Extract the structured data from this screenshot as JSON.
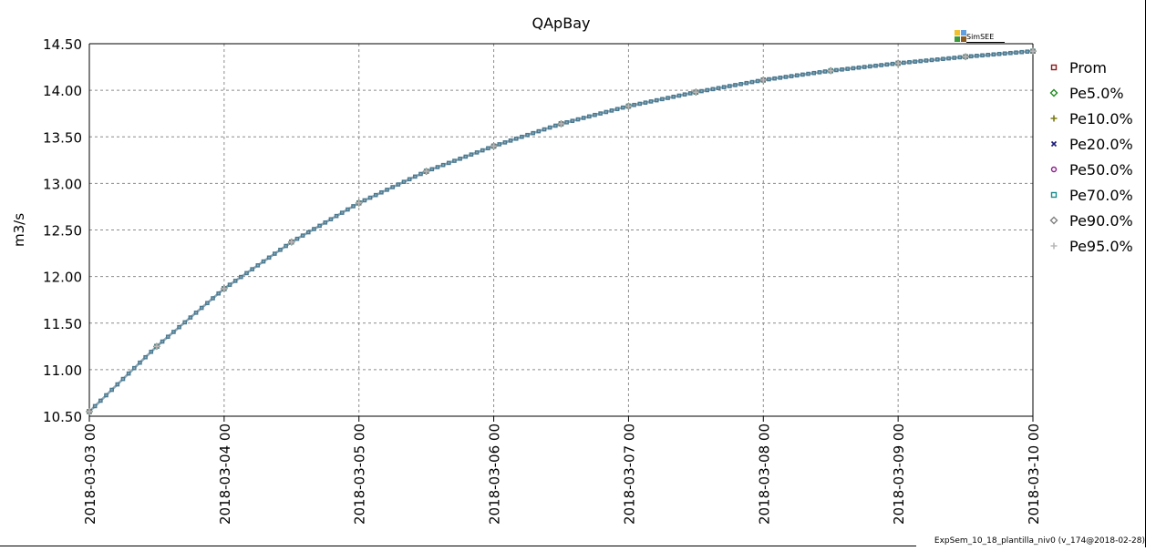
{
  "chart_data": {
    "type": "line",
    "title": "QApBay",
    "ylabel": "m3/s",
    "xlabel": "",
    "ylim": [
      10.5,
      14.5
    ],
    "xlim": [
      "2018-03-03 00",
      "2018-03-10 00"
    ],
    "y_ticks": [
      "10.50",
      "11.00",
      "11.50",
      "12.00",
      "12.50",
      "13.00",
      "13.50",
      "14.00",
      "14.50"
    ],
    "x_ticks": [
      "2018-03-03 00",
      "2018-03-04 00",
      "2018-03-05 00",
      "2018-03-06 00",
      "2018-03-07 00",
      "2018-03-08 00",
      "2018-03-09 00",
      "2018-03-10 00"
    ],
    "grid": true,
    "legend_position": "right",
    "x": [
      "2018-03-03 00",
      "2018-03-03 12",
      "2018-03-04 00",
      "2018-03-04 12",
      "2018-03-05 00",
      "2018-03-05 12",
      "2018-03-06 00",
      "2018-03-06 12",
      "2018-03-07 00",
      "2018-03-07 12",
      "2018-03-08 00",
      "2018-03-08 12",
      "2018-03-09 00",
      "2018-03-09 12",
      "2018-03-10 00"
    ],
    "series": [
      {
        "name": "Prom",
        "marker": "square",
        "color": "#8b1a1a",
        "values": [
          10.55,
          11.25,
          11.87,
          12.37,
          12.79,
          13.13,
          13.4,
          13.64,
          13.83,
          13.98,
          14.11,
          14.21,
          14.29,
          14.36,
          14.42
        ]
      },
      {
        "name": "Pe5.0%",
        "marker": "diamond",
        "color": "#1f8a1f",
        "values": [
          10.55,
          11.25,
          11.87,
          12.37,
          12.79,
          13.13,
          13.4,
          13.64,
          13.83,
          13.98,
          14.11,
          14.21,
          14.29,
          14.36,
          14.42
        ]
      },
      {
        "name": "Pe10.0%",
        "marker": "plus",
        "color": "#7a7a10",
        "values": [
          10.55,
          11.25,
          11.87,
          12.37,
          12.79,
          13.13,
          13.4,
          13.64,
          13.83,
          13.98,
          14.11,
          14.21,
          14.29,
          14.36,
          14.42
        ]
      },
      {
        "name": "Pe20.0%",
        "marker": "cross",
        "color": "#1a1a7a",
        "values": [
          10.55,
          11.25,
          11.87,
          12.37,
          12.79,
          13.13,
          13.4,
          13.64,
          13.83,
          13.98,
          14.11,
          14.21,
          14.29,
          14.36,
          14.42
        ]
      },
      {
        "name": "Pe50.0%",
        "marker": "circle",
        "color": "#8a1f8a",
        "values": [
          10.55,
          11.25,
          11.87,
          12.37,
          12.79,
          13.13,
          13.4,
          13.64,
          13.83,
          13.98,
          14.11,
          14.21,
          14.29,
          14.36,
          14.42
        ]
      },
      {
        "name": "Pe70.0%",
        "marker": "square",
        "color": "#1a8a8a",
        "values": [
          10.55,
          11.25,
          11.87,
          12.37,
          12.79,
          13.13,
          13.4,
          13.64,
          13.83,
          13.98,
          14.11,
          14.21,
          14.29,
          14.36,
          14.42
        ]
      },
      {
        "name": "Pe90.0%",
        "marker": "diamond",
        "color": "#808080",
        "values": [
          10.55,
          11.25,
          11.87,
          12.37,
          12.79,
          13.13,
          13.4,
          13.64,
          13.83,
          13.98,
          14.11,
          14.21,
          14.29,
          14.36,
          14.42
        ]
      },
      {
        "name": "Pe95.0%",
        "marker": "plus",
        "color": "#b8b8b8",
        "values": [
          10.55,
          11.25,
          11.87,
          12.37,
          12.79,
          13.13,
          13.4,
          13.64,
          13.83,
          13.98,
          14.11,
          14.21,
          14.29,
          14.36,
          14.42
        ]
      }
    ],
    "line_color": "#8fa8b8"
  },
  "logo": {
    "text": "SimSEE",
    "colors": [
      "#f0c030",
      "#60a0e0",
      "#3a9a3a",
      "#8a5a20"
    ]
  },
  "footer": {
    "text": "ExpSem_10_18_plantilla_niv0 (v_174@2018-02-28)"
  }
}
